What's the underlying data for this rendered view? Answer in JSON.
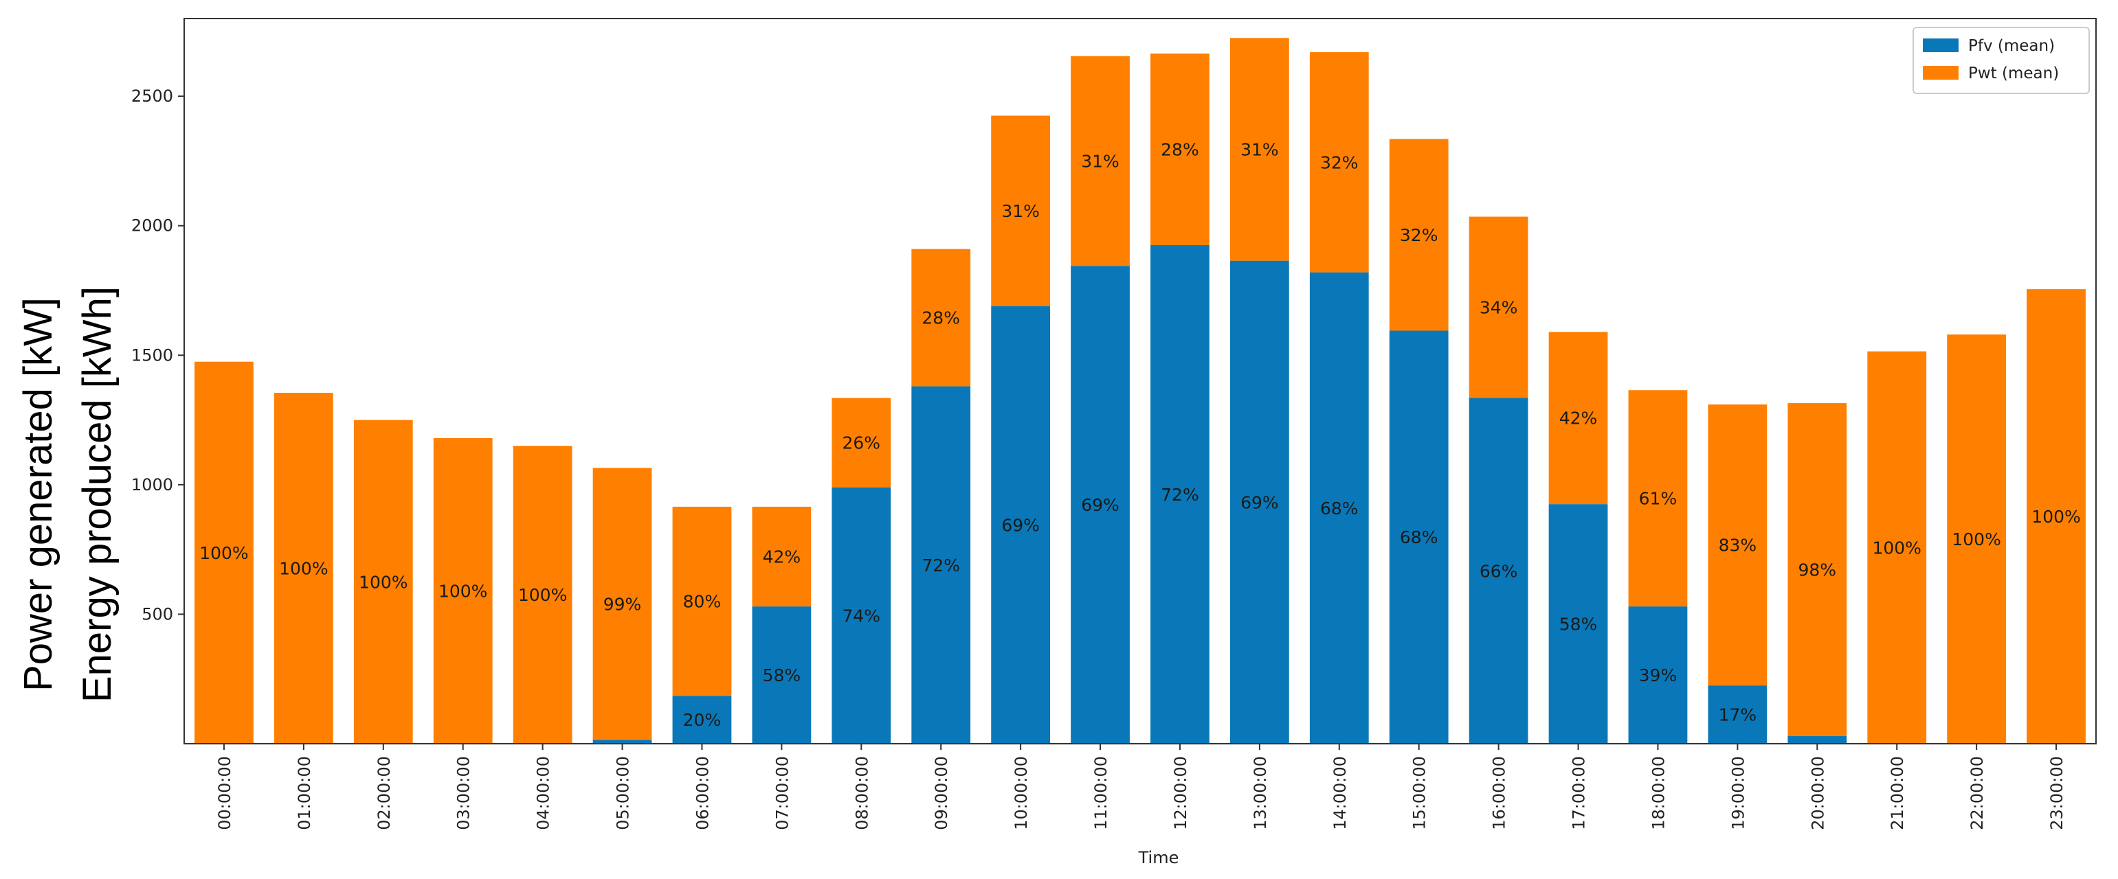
{
  "chart_data": {
    "type": "bar",
    "stacked": true,
    "title": "",
    "xlabel": "Time",
    "ylabel_line1": "Power generated [kW]",
    "ylabel_line2": "Energy produced [kWh]",
    "ylim": [
      0,
      2800
    ],
    "yticks": [
      500,
      1000,
      1500,
      2000,
      2500
    ],
    "legend_position": "top-right",
    "categories": [
      "00:00:00",
      "01:00:00",
      "02:00:00",
      "03:00:00",
      "04:00:00",
      "05:00:00",
      "06:00:00",
      "07:00:00",
      "08:00:00",
      "09:00:00",
      "10:00:00",
      "11:00:00",
      "12:00:00",
      "13:00:00",
      "14:00:00",
      "15:00:00",
      "16:00:00",
      "17:00:00",
      "18:00:00",
      "19:00:00",
      "20:00:00",
      "21:00:00",
      "22:00:00",
      "23:00:00"
    ],
    "series": [
      {
        "name": "Pfv (mean)",
        "color": "#0a78b8",
        "values": [
          0,
          0,
          0,
          0,
          0,
          15,
          185,
          530,
          990,
          1380,
          1690,
          1845,
          1925,
          1865,
          1820,
          1595,
          1335,
          925,
          530,
          225,
          30,
          0,
          0,
          0
        ],
        "labels": [
          "",
          "",
          "",
          "",
          "",
          "",
          "20%",
          "58%",
          "74%",
          "72%",
          "69%",
          "69%",
          "72%",
          "69%",
          "68%",
          "68%",
          "66%",
          "58%",
          "39%",
          "17%",
          "",
          "",
          "",
          ""
        ]
      },
      {
        "name": "Pwt (mean)",
        "color": "#ff8000",
        "values": [
          1475,
          1355,
          1250,
          1180,
          1150,
          1050,
          730,
          385,
          345,
          530,
          735,
          810,
          740,
          860,
          850,
          740,
          700,
          665,
          835,
          1085,
          1285,
          1515,
          1580,
          1755
        ],
        "labels": [
          "100%",
          "100%",
          "100%",
          "100%",
          "100%",
          "99%",
          "80%",
          "42%",
          "26%",
          "28%",
          "31%",
          "31%",
          "28%",
          "31%",
          "32%",
          "32%",
          "34%",
          "42%",
          "61%",
          "83%",
          "98%",
          "100%",
          "100%",
          "100%"
        ]
      }
    ]
  }
}
